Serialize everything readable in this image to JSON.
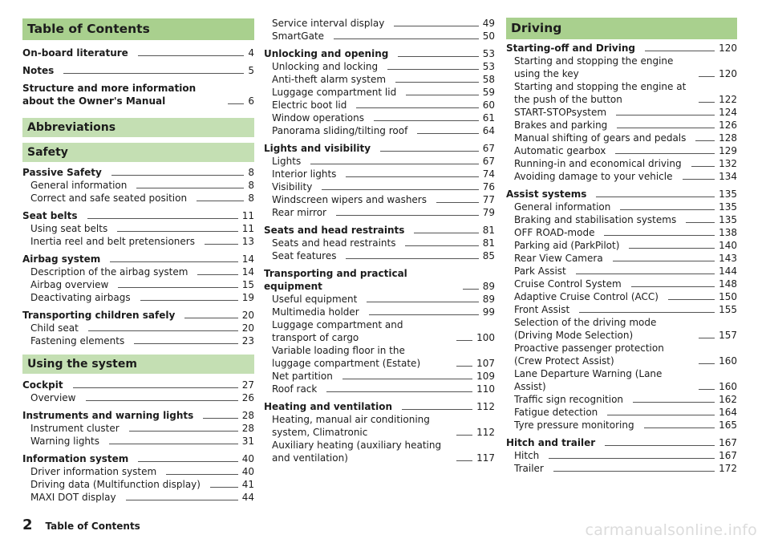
{
  "toc": {
    "col1": [
      {
        "type": "header",
        "text": "Table of Contents"
      },
      {
        "type": "entry",
        "level": 0,
        "text": "On-board literature",
        "page": "4"
      },
      {
        "type": "gap",
        "h": 6
      },
      {
        "type": "entry",
        "level": 0,
        "text": "Notes",
        "page": "5"
      },
      {
        "type": "gap",
        "h": 6
      },
      {
        "type": "entry",
        "level": 0,
        "text": "Structure and more information about the Owner's Manual",
        "page": "6"
      },
      {
        "type": "gap",
        "h": 13
      },
      {
        "type": "section",
        "text": "Abbreviations"
      },
      {
        "type": "gap",
        "h": 7
      },
      {
        "type": "section",
        "text": "Safety"
      },
      {
        "type": "gap",
        "h": 5
      },
      {
        "type": "entry",
        "level": 0,
        "text": "Passive Safety",
        "page": "8"
      },
      {
        "type": "entry",
        "level": 1,
        "text": "General information",
        "page": "8"
      },
      {
        "type": "entry",
        "level": 1,
        "text": "Correct and safe seated position",
        "page": "8"
      },
      {
        "type": "gap",
        "h": 6
      },
      {
        "type": "entry",
        "level": 0,
        "text": "Seat belts",
        "page": "11"
      },
      {
        "type": "entry",
        "level": 1,
        "text": "Using seat belts",
        "page": "11"
      },
      {
        "type": "entry",
        "level": 1,
        "text": "Inertia reel and belt pretensioners",
        "page": "13"
      },
      {
        "type": "gap",
        "h": 6
      },
      {
        "type": "entry",
        "level": 0,
        "text": "Airbag system",
        "page": "14"
      },
      {
        "type": "entry",
        "level": 1,
        "text": "Description of the airbag system",
        "page": "14"
      },
      {
        "type": "entry",
        "level": 1,
        "text": "Airbag overview",
        "page": "15"
      },
      {
        "type": "entry",
        "level": 1,
        "text": "Deactivating airbags",
        "page": "19"
      },
      {
        "type": "gap",
        "h": 6
      },
      {
        "type": "entry",
        "level": 0,
        "text": "Transporting children safely",
        "page": "20"
      },
      {
        "type": "entry",
        "level": 1,
        "text": "Child seat",
        "page": "20"
      },
      {
        "type": "entry",
        "level": 1,
        "text": "Fastening elements",
        "page": "23"
      },
      {
        "type": "gap",
        "h": 9
      },
      {
        "type": "section",
        "text": "Using the system"
      },
      {
        "type": "gap",
        "h": 6
      },
      {
        "type": "entry",
        "level": 0,
        "text": "Cockpit",
        "page": "27"
      },
      {
        "type": "entry",
        "level": 1,
        "text": "Overview",
        "page": "26"
      },
      {
        "type": "gap",
        "h": 6
      },
      {
        "type": "entry",
        "level": 0,
        "text": "Instruments and warning lights",
        "page": "28"
      },
      {
        "type": "entry",
        "level": 1,
        "text": "Instrument cluster",
        "page": "28"
      },
      {
        "type": "entry",
        "level": 1,
        "text": "Warning lights",
        "page": "31"
      },
      {
        "type": "gap",
        "h": 6
      },
      {
        "type": "entry",
        "level": 0,
        "text": "Information system",
        "page": "40"
      },
      {
        "type": "entry",
        "level": 1,
        "text": "Driver information system",
        "page": "40"
      },
      {
        "type": "entry",
        "level": 1,
        "text": "Driving data (Multifunction display)",
        "page": "41"
      },
      {
        "type": "entry",
        "level": 1,
        "text": "MAXI DOT display",
        "page": "44"
      }
    ],
    "col2": [
      {
        "type": "gap",
        "h": 21
      },
      {
        "type": "entry",
        "level": 1,
        "text": "Service interval display",
        "page": "49"
      },
      {
        "type": "entry",
        "level": 1,
        "text": "SmartGate",
        "page": "50"
      },
      {
        "type": "gap",
        "h": 6
      },
      {
        "type": "entry",
        "level": 0,
        "text": "Unlocking and opening",
        "page": "53"
      },
      {
        "type": "entry",
        "level": 1,
        "text": "Unlocking and locking",
        "page": "53"
      },
      {
        "type": "entry",
        "level": 1,
        "text": "Anti-theft alarm system",
        "page": "58"
      },
      {
        "type": "entry",
        "level": 1,
        "text": "Luggage compartment lid",
        "page": "59"
      },
      {
        "type": "entry",
        "level": 1,
        "text": "Electric boot lid",
        "page": "60"
      },
      {
        "type": "entry",
        "level": 1,
        "text": "Window operations",
        "page": "61"
      },
      {
        "type": "entry",
        "level": 1,
        "text": "Panorama sliding/tilting roof",
        "page": "64"
      },
      {
        "type": "gap",
        "h": 6
      },
      {
        "type": "entry",
        "level": 0,
        "text": "Lights and visibility",
        "page": "67"
      },
      {
        "type": "entry",
        "level": 1,
        "text": "Lights",
        "page": "67"
      },
      {
        "type": "entry",
        "level": 1,
        "text": "Interior lights",
        "page": "74"
      },
      {
        "type": "entry",
        "level": 1,
        "text": "Visibility",
        "page": "76"
      },
      {
        "type": "entry",
        "level": 1,
        "text": "Windscreen wipers and washers",
        "page": "77"
      },
      {
        "type": "entry",
        "level": 1,
        "text": "Rear mirror",
        "page": "79"
      },
      {
        "type": "gap",
        "h": 6
      },
      {
        "type": "entry",
        "level": 0,
        "text": "Seats and head restraints",
        "page": "81"
      },
      {
        "type": "entry",
        "level": 1,
        "text": "Seats and head restraints",
        "page": "81"
      },
      {
        "type": "entry",
        "level": 1,
        "text": "Seat features",
        "page": "85"
      },
      {
        "type": "gap",
        "h": 6
      },
      {
        "type": "entry",
        "level": 0,
        "text": "Transporting and practical equipment",
        "page": "89"
      },
      {
        "type": "entry",
        "level": 1,
        "text": "Useful equipment",
        "page": "89"
      },
      {
        "type": "entry",
        "level": 1,
        "text": "Multimedia holder",
        "page": "99"
      },
      {
        "type": "entry",
        "level": 1,
        "text": "Luggage compartment and transport of cargo",
        "page": "100"
      },
      {
        "type": "entry",
        "level": 1,
        "text": "Variable loading floor in the luggage compartment (Estate)",
        "page": "107"
      },
      {
        "type": "entry",
        "level": 1,
        "text": "Net partition",
        "page": "109"
      },
      {
        "type": "entry",
        "level": 1,
        "text": "Roof rack",
        "page": "110"
      },
      {
        "type": "gap",
        "h": 6
      },
      {
        "type": "entry",
        "level": 0,
        "text": "Heating and ventilation",
        "page": "112"
      },
      {
        "type": "entry",
        "level": 1,
        "text": "Heating, manual air conditioning system, Climatronic",
        "page": "112"
      },
      {
        "type": "entry",
        "level": 1,
        "text": "Auxiliary heating (auxiliary heating and ventilation)",
        "page": "117"
      }
    ],
    "col3": [
      {
        "type": "header",
        "text": "Driving"
      },
      {
        "type": "entry",
        "level": 0,
        "text": "Starting-off and Driving",
        "page": "120"
      },
      {
        "type": "entry",
        "level": 1,
        "text": "Starting and stopping the engine using the key",
        "page": "120"
      },
      {
        "type": "entry",
        "level": 1,
        "text": "Starting and stopping the engine at the push of the button",
        "page": "122"
      },
      {
        "type": "entry",
        "level": 1,
        "text": "START-STOPsystem",
        "page": "124"
      },
      {
        "type": "entry",
        "level": 1,
        "text": "Brakes and parking",
        "page": "126"
      },
      {
        "type": "entry",
        "level": 1,
        "text": "Manual shifting of gears and pedals",
        "page": "128"
      },
      {
        "type": "entry",
        "level": 1,
        "text": "Automatic gearbox",
        "page": "129"
      },
      {
        "type": "entry",
        "level": 1,
        "text": "Running-in and economical driving",
        "page": "132"
      },
      {
        "type": "entry",
        "level": 1,
        "text": "Avoiding damage to your vehicle",
        "page": "134"
      },
      {
        "type": "gap",
        "h": 6
      },
      {
        "type": "entry",
        "level": 0,
        "text": "Assist systems",
        "page": "135"
      },
      {
        "type": "entry",
        "level": 1,
        "text": "General information",
        "page": "135"
      },
      {
        "type": "entry",
        "level": 1,
        "text": "Braking and stabilisation systems",
        "page": "135"
      },
      {
        "type": "entry",
        "level": 1,
        "text": "OFF ROAD-mode",
        "page": "138"
      },
      {
        "type": "entry",
        "level": 1,
        "text": "Parking aid (ParkPilot)",
        "page": "140"
      },
      {
        "type": "entry",
        "level": 1,
        "text": "Rear View Camera",
        "page": "143"
      },
      {
        "type": "entry",
        "level": 1,
        "text": "Park Assist",
        "page": "144"
      },
      {
        "type": "entry",
        "level": 1,
        "text": "Cruise Control System",
        "page": "148"
      },
      {
        "type": "entry",
        "level": 1,
        "text": "Adaptive Cruise Control (ACC)",
        "page": "150"
      },
      {
        "type": "entry",
        "level": 1,
        "text": "Front Assist",
        "page": "155"
      },
      {
        "type": "entry",
        "level": 1,
        "text": "Selection of the driving mode (Driving Mode Selection)",
        "page": "157"
      },
      {
        "type": "entry",
        "level": 1,
        "text": "Proactive passenger protection (Crew Protect Assist)",
        "page": "160"
      },
      {
        "type": "entry",
        "level": 1,
        "text": "Lane Departure Warning (Lane Assist)",
        "page": "160"
      },
      {
        "type": "entry",
        "level": 1,
        "text": "Traffic sign recognition",
        "page": "162"
      },
      {
        "type": "entry",
        "level": 1,
        "text": "Fatigue detection",
        "page": "164"
      },
      {
        "type": "entry",
        "level": 1,
        "text": "Tyre pressure monitoring",
        "page": "165"
      },
      {
        "type": "gap",
        "h": 6
      },
      {
        "type": "entry",
        "level": 0,
        "text": "Hitch and trailer",
        "page": "167"
      },
      {
        "type": "entry",
        "level": 1,
        "text": "Hitch",
        "page": "167"
      },
      {
        "type": "entry",
        "level": 1,
        "text": "Trailer",
        "page": "172"
      }
    ]
  },
  "footer": {
    "page_number": "2",
    "title": "Table of Contents"
  },
  "watermark": "carmanualsonline.info"
}
